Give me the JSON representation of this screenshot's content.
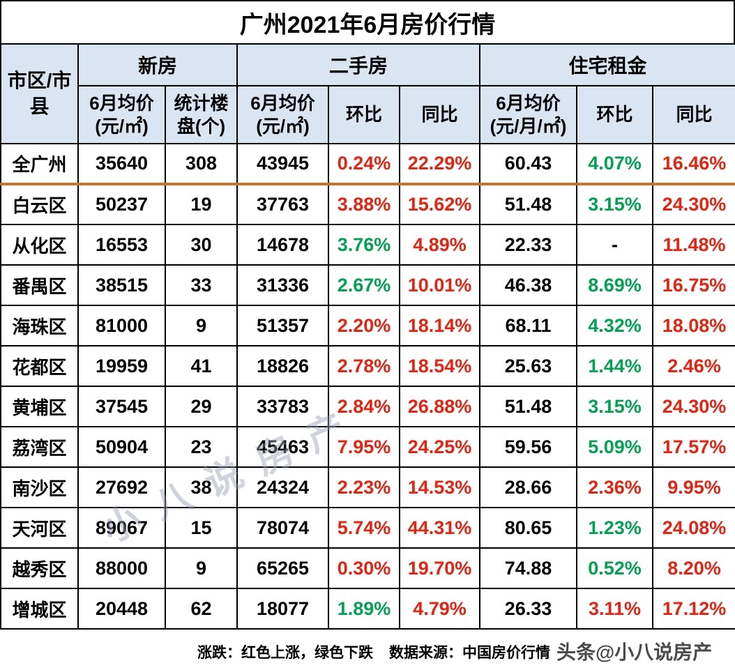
{
  "title": "广州2021年6月房价行情",
  "colors": {
    "up_red": "#e8220e",
    "down_green": "#00a34f",
    "header_bg": "#d9e5f2",
    "total_divider_orange": "#c6732b",
    "grid": "#000000"
  },
  "table": {
    "region_header": "市区/市县",
    "groups": [
      {
        "label": "新房"
      },
      {
        "label": "二手房"
      },
      {
        "label": "住宅租金"
      }
    ],
    "subheaders": [
      "6月均价\n(元/㎡)",
      "统计楼盘(个)",
      "6月均价\n(元/㎡)",
      "环比",
      "同比",
      "6月均价\n(元/月/㎡)",
      "环比",
      "同比"
    ],
    "rows": [
      {
        "region": "全广州",
        "divider": true,
        "cells": [
          {
            "text": "35640",
            "cls": "num"
          },
          {
            "text": "308",
            "cls": "num"
          },
          {
            "text": "43945",
            "cls": "num"
          },
          {
            "text": "0.24%",
            "cls": "red"
          },
          {
            "text": "22.29%",
            "cls": "red"
          },
          {
            "text": "60.43",
            "cls": "num"
          },
          {
            "text": "4.07%",
            "cls": "green"
          },
          {
            "text": "16.46%",
            "cls": "red"
          }
        ]
      },
      {
        "region": "白云区",
        "divider": false,
        "cells": [
          {
            "text": "50237",
            "cls": "num"
          },
          {
            "text": "19",
            "cls": "num"
          },
          {
            "text": "37763",
            "cls": "num"
          },
          {
            "text": "3.88%",
            "cls": "red"
          },
          {
            "text": "15.62%",
            "cls": "red"
          },
          {
            "text": "51.48",
            "cls": "num"
          },
          {
            "text": "3.15%",
            "cls": "green"
          },
          {
            "text": "24.30%",
            "cls": "red"
          }
        ]
      },
      {
        "region": "从化区",
        "divider": false,
        "cells": [
          {
            "text": "16553",
            "cls": "num"
          },
          {
            "text": "30",
            "cls": "num"
          },
          {
            "text": "14678",
            "cls": "num"
          },
          {
            "text": "3.76%",
            "cls": "green"
          },
          {
            "text": "4.89%",
            "cls": "red"
          },
          {
            "text": "22.33",
            "cls": "num"
          },
          {
            "text": "-",
            "cls": "dash"
          },
          {
            "text": "11.48%",
            "cls": "red"
          }
        ]
      },
      {
        "region": "番禺区",
        "divider": false,
        "cells": [
          {
            "text": "38515",
            "cls": "num"
          },
          {
            "text": "33",
            "cls": "num"
          },
          {
            "text": "31336",
            "cls": "num"
          },
          {
            "text": "2.67%",
            "cls": "green"
          },
          {
            "text": "10.01%",
            "cls": "red"
          },
          {
            "text": "46.38",
            "cls": "num"
          },
          {
            "text": "8.69%",
            "cls": "green"
          },
          {
            "text": "16.75%",
            "cls": "red"
          }
        ]
      },
      {
        "region": "海珠区",
        "divider": false,
        "cells": [
          {
            "text": "81000",
            "cls": "num"
          },
          {
            "text": "9",
            "cls": "num"
          },
          {
            "text": "51357",
            "cls": "num"
          },
          {
            "text": "2.20%",
            "cls": "red"
          },
          {
            "text": "18.14%",
            "cls": "red"
          },
          {
            "text": "68.11",
            "cls": "num"
          },
          {
            "text": "4.32%",
            "cls": "green"
          },
          {
            "text": "18.08%",
            "cls": "red"
          }
        ]
      },
      {
        "region": "花都区",
        "divider": false,
        "cells": [
          {
            "text": "19959",
            "cls": "num"
          },
          {
            "text": "41",
            "cls": "num"
          },
          {
            "text": "18826",
            "cls": "num"
          },
          {
            "text": "2.78%",
            "cls": "red"
          },
          {
            "text": "18.54%",
            "cls": "red"
          },
          {
            "text": "25.63",
            "cls": "num"
          },
          {
            "text": "1.44%",
            "cls": "green"
          },
          {
            "text": "2.46%",
            "cls": "red"
          }
        ]
      },
      {
        "region": "黄埔区",
        "divider": false,
        "cells": [
          {
            "text": "37545",
            "cls": "num"
          },
          {
            "text": "29",
            "cls": "num"
          },
          {
            "text": "33783",
            "cls": "num"
          },
          {
            "text": "2.84%",
            "cls": "red"
          },
          {
            "text": "26.88%",
            "cls": "red"
          },
          {
            "text": "51.48",
            "cls": "num"
          },
          {
            "text": "3.15%",
            "cls": "green"
          },
          {
            "text": "24.30%",
            "cls": "red"
          }
        ]
      },
      {
        "region": "荔湾区",
        "divider": false,
        "cells": [
          {
            "text": "50904",
            "cls": "num"
          },
          {
            "text": "23",
            "cls": "num"
          },
          {
            "text": "45463",
            "cls": "num"
          },
          {
            "text": "7.95%",
            "cls": "red"
          },
          {
            "text": "24.25%",
            "cls": "red"
          },
          {
            "text": "59.56",
            "cls": "num"
          },
          {
            "text": "5.09%",
            "cls": "green"
          },
          {
            "text": "17.57%",
            "cls": "red"
          }
        ]
      },
      {
        "region": "南沙区",
        "divider": false,
        "cells": [
          {
            "text": "27692",
            "cls": "num"
          },
          {
            "text": "38",
            "cls": "num"
          },
          {
            "text": "24324",
            "cls": "num"
          },
          {
            "text": "2.23%",
            "cls": "red"
          },
          {
            "text": "14.53%",
            "cls": "red"
          },
          {
            "text": "28.66",
            "cls": "num"
          },
          {
            "text": "2.36%",
            "cls": "red"
          },
          {
            "text": "9.95%",
            "cls": "red"
          }
        ]
      },
      {
        "region": "天河区",
        "divider": false,
        "cells": [
          {
            "text": "89067",
            "cls": "num"
          },
          {
            "text": "15",
            "cls": "num"
          },
          {
            "text": "78074",
            "cls": "num"
          },
          {
            "text": "5.74%",
            "cls": "red"
          },
          {
            "text": "44.31%",
            "cls": "red"
          },
          {
            "text": "80.65",
            "cls": "num"
          },
          {
            "text": "1.23%",
            "cls": "green"
          },
          {
            "text": "24.08%",
            "cls": "red"
          }
        ]
      },
      {
        "region": "越秀区",
        "divider": false,
        "cells": [
          {
            "text": "88000",
            "cls": "num"
          },
          {
            "text": "9",
            "cls": "num"
          },
          {
            "text": "65265",
            "cls": "num"
          },
          {
            "text": "0.30%",
            "cls": "red"
          },
          {
            "text": "19.70%",
            "cls": "red"
          },
          {
            "text": "74.88",
            "cls": "num"
          },
          {
            "text": "0.52%",
            "cls": "green"
          },
          {
            "text": "8.20%",
            "cls": "red"
          }
        ]
      },
      {
        "region": "增城区",
        "divider": false,
        "cells": [
          {
            "text": "20448",
            "cls": "num"
          },
          {
            "text": "62",
            "cls": "num"
          },
          {
            "text": "18077",
            "cls": "num"
          },
          {
            "text": "1.89%",
            "cls": "green"
          },
          {
            "text": "4.79%",
            "cls": "red"
          },
          {
            "text": "26.33",
            "cls": "num"
          },
          {
            "text": "3.11%",
            "cls": "red"
          },
          {
            "text": "17.12%",
            "cls": "red"
          }
        ]
      }
    ]
  },
  "footer": {
    "legend_note": "涨跌：红色上涨，绿色下跌",
    "data_source": "数据来源：中国房价行情"
  },
  "watermarks": {
    "diagonal": "小八说房产",
    "byline": "头条@小八说房产"
  },
  "chart_data": {
    "type": "table",
    "title": "广州2021年6月房价行情",
    "column_groups": [
      "新房",
      "二手房",
      "住宅租金"
    ],
    "columns": [
      "市区/市县",
      "新房 6月均价(元/㎡)",
      "新房 统计楼盘(个)",
      "二手房 6月均价(元/㎡)",
      "二手房 环比",
      "二手房 同比",
      "住宅租金 6月均价(元/月/㎡)",
      "住宅租金 环比",
      "住宅租金 同比"
    ],
    "rows": [
      [
        "全广州",
        35640,
        308,
        43945,
        "0.24%",
        "22.29%",
        60.43,
        "4.07%",
        "16.46%"
      ],
      [
        "白云区",
        50237,
        19,
        37763,
        "3.88%",
        "15.62%",
        51.48,
        "3.15%",
        "24.30%"
      ],
      [
        "从化区",
        16553,
        30,
        14678,
        "3.76%",
        "4.89%",
        22.33,
        "-",
        "11.48%"
      ],
      [
        "番禺区",
        38515,
        33,
        31336,
        "2.67%",
        "10.01%",
        46.38,
        "8.69%",
        "16.75%"
      ],
      [
        "海珠区",
        81000,
        9,
        51357,
        "2.20%",
        "18.14%",
        68.11,
        "4.32%",
        "18.08%"
      ],
      [
        "花都区",
        19959,
        41,
        18826,
        "2.78%",
        "18.54%",
        25.63,
        "1.44%",
        "2.46%"
      ],
      [
        "黄埔区",
        37545,
        29,
        33783,
        "2.84%",
        "26.88%",
        51.48,
        "3.15%",
        "24.30%"
      ],
      [
        "荔湾区",
        50904,
        23,
        45463,
        "7.95%",
        "24.25%",
        59.56,
        "5.09%",
        "17.57%"
      ],
      [
        "南沙区",
        27692,
        38,
        24324,
        "2.23%",
        "14.53%",
        28.66,
        "2.36%",
        "9.95%"
      ],
      [
        "天河区",
        89067,
        15,
        78074,
        "5.74%",
        "44.31%",
        80.65,
        "1.23%",
        "24.08%"
      ],
      [
        "越秀区",
        88000,
        9,
        65265,
        "0.30%",
        "19.70%",
        74.88,
        "0.52%",
        "8.20%"
      ],
      [
        "增城区",
        20448,
        62,
        18077,
        "1.89%",
        "4.79%",
        26.33,
        "3.11%",
        "17.12%"
      ]
    ],
    "notes": "红色=上涨, 绿色=下跌; 全广州行下方为橙色分隔线"
  }
}
